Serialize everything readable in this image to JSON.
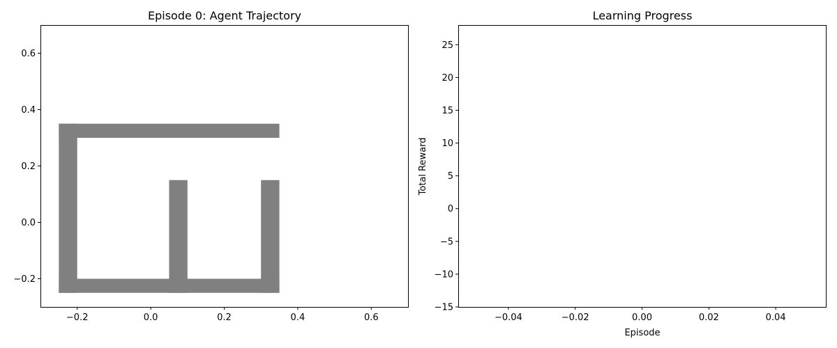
{
  "chart_data": [
    {
      "type": "map",
      "title": "Episode 0: Agent Trajectory",
      "xlabel": "",
      "ylabel": "",
      "xlim": [
        -0.3,
        0.7
      ],
      "ylim": [
        -0.3,
        0.7
      ],
      "xticks": [
        -0.2,
        0.0,
        0.2,
        0.4,
        0.6
      ],
      "yticks": [
        -0.2,
        0.0,
        0.2,
        0.4,
        0.6
      ],
      "xtick_labels": [
        "−0.2",
        "0.0",
        "0.2",
        "0.4",
        "0.6"
      ],
      "ytick_labels": [
        "−0.2",
        "0.0",
        "0.2",
        "0.4",
        "0.6"
      ],
      "wall_color": "#808080",
      "walls": [
        {
          "x0": -0.25,
          "x1": 0.35,
          "y0": 0.3,
          "y1": 0.35
        },
        {
          "x0": -0.25,
          "x1": -0.2,
          "y0": -0.25,
          "y1": 0.35
        },
        {
          "x0": -0.25,
          "x1": 0.35,
          "y0": -0.25,
          "y1": -0.2
        },
        {
          "x0": 0.05,
          "x1": 0.1,
          "y0": -0.25,
          "y1": 0.15
        },
        {
          "x0": 0.3,
          "x1": 0.35,
          "y0": -0.25,
          "y1": 0.15
        }
      ],
      "grid": false
    },
    {
      "type": "line",
      "title": "Learning Progress",
      "xlabel": "Episode",
      "ylabel": "Total Reward",
      "xlim": [
        -0.055,
        0.055
      ],
      "ylim": [
        -15,
        28
      ],
      "xticks": [
        -0.04,
        -0.02,
        0.0,
        0.02,
        0.04
      ],
      "yticks": [
        -15,
        -10,
        -5,
        0,
        5,
        10,
        15,
        20,
        25
      ],
      "xtick_labels": [
        "−0.04",
        "−0.02",
        "0.00",
        "0.02",
        "0.04"
      ],
      "ytick_labels": [
        "−15",
        "−10",
        "−5",
        "0",
        "5",
        "10",
        "15",
        "20",
        "25"
      ],
      "series": [
        {
          "x": [],
          "values": []
        }
      ],
      "grid": false
    }
  ]
}
